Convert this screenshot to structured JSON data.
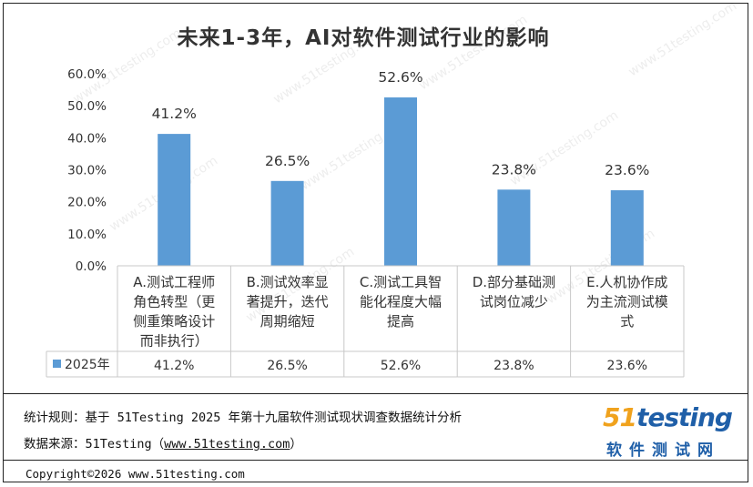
{
  "chart_data": {
    "type": "bar",
    "title": "未来1-3年，AI对软件测试行业的影响",
    "categories": [
      [
        "A.测试工程师",
        "角色转型（更",
        "侧重策略设计",
        "而非执行）"
      ],
      [
        "B.测试效率显",
        "著提升，迭代",
        "周期缩短"
      ],
      [
        "C.测试工具智",
        "能化程度大幅",
        "提高"
      ],
      [
        "D.部分基础测",
        "试岗位减少"
      ],
      [
        "E.人机协作成",
        "为主流测试模",
        "式"
      ]
    ],
    "series": [
      {
        "name": "2025年",
        "values": [
          41.2,
          26.5,
          52.6,
          23.8,
          23.6
        ]
      }
    ],
    "value_labels": [
      "41.2%",
      "26.5%",
      "52.6%",
      "23.8%",
      "23.6%"
    ],
    "yticks": [
      "0.0%",
      "10.0%",
      "20.0%",
      "30.0%",
      "40.0%",
      "50.0%",
      "60.0%"
    ],
    "ylim": [
      0,
      60
    ],
    "grid": false,
    "legend": "data-table",
    "bar_color": "#5b9bd5"
  },
  "notes": {
    "rule": "统计规则：基于 51Testing 2025 年第十九届软件测试现状调查数据统计分析",
    "source_prefix": "数据来源：51Testing（",
    "source_link": "www.51testing.com",
    "source_suffix": "）"
  },
  "copyright": "Copyright©2026 www.51testing.com",
  "logo": {
    "number": "51",
    "word": "testing",
    "subtitle": "软件测试网"
  },
  "watermark": "www.51testing.com"
}
